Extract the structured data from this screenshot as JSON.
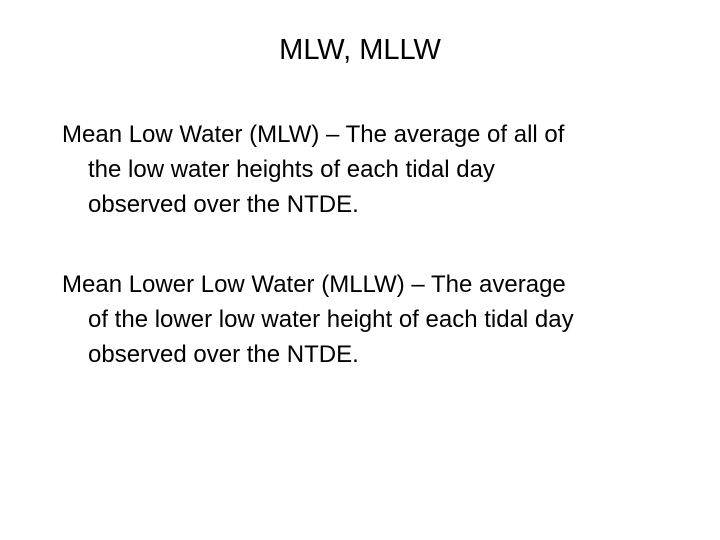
{
  "title": "MLW, MLLW",
  "paragraphs": [
    {
      "lines": [
        "Mean Low Water (MLW) – The average of all of",
        "the low water heights of each tidal day",
        "observed over the NTDE."
      ]
    },
    {
      "lines": [
        "Mean Lower Low Water (MLLW) – The average",
        "of the lower low water height of each tidal day",
        "observed over the NTDE."
      ]
    }
  ]
}
